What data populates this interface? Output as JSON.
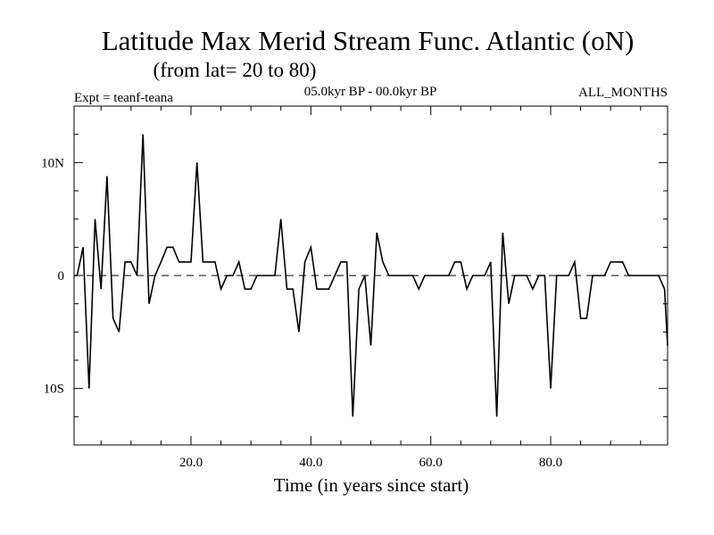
{
  "chart_data": {
    "type": "line",
    "title": "Latitude Max Merid Stream Func. Atlantic (oN)",
    "subtitle": "(from lat= 20 to 80)",
    "expt_label": "Expt = teanf-teana",
    "period_label": "05.0kyr BP - 00.0kyr BP",
    "months_label": "ALL_MONTHS",
    "xlabel": "Time (in years since start)",
    "ylabel": "",
    "xlim": [
      0.5,
      99.5
    ],
    "ylim": [
      -15,
      15
    ],
    "x_ticks": [
      {
        "value": 20,
        "label": "20.0"
      },
      {
        "value": 40,
        "label": "40.0"
      },
      {
        "value": 60,
        "label": "60.0"
      },
      {
        "value": 80,
        "label": "80.0"
      }
    ],
    "y_ticks": [
      {
        "value": 10,
        "label": "10N"
      },
      {
        "value": 0,
        "label": "0"
      },
      {
        "value": -10,
        "label": "10S"
      }
    ],
    "zero_line": "dashed",
    "series": [
      {
        "name": "Latitude Max Merid Stream Func. Atlantic",
        "x": [
          1,
          2,
          3,
          4,
          5,
          6,
          7,
          8,
          9,
          10,
          11,
          12,
          13,
          14,
          15,
          16,
          17,
          18,
          19,
          20,
          21,
          22,
          23,
          24,
          25,
          26,
          27,
          28,
          29,
          30,
          31,
          32,
          33,
          34,
          35,
          36,
          37,
          38,
          39,
          40,
          41,
          42,
          43,
          44,
          45,
          46,
          47,
          48,
          49,
          50,
          51,
          52,
          53,
          54,
          55,
          56,
          57,
          58,
          59,
          60,
          61,
          62,
          63,
          64,
          65,
          66,
          67,
          68,
          69,
          70,
          71,
          72,
          73,
          74,
          75,
          76,
          77,
          78,
          79,
          80,
          81,
          82,
          83,
          84,
          85,
          86,
          87,
          88,
          89,
          90,
          91,
          92,
          93,
          94,
          95,
          96,
          97,
          98,
          99,
          99.5
        ],
        "values": [
          0,
          2.5,
          -10,
          5,
          -1.2,
          8.8,
          -3.8,
          -5,
          1.2,
          1.2,
          0,
          12.5,
          -2.5,
          0,
          1.2,
          2.5,
          2.5,
          1.2,
          1.2,
          1.2,
          10,
          1.2,
          1.2,
          1.2,
          -1.2,
          0,
          0,
          1.2,
          -1.2,
          -1.2,
          0,
          0,
          0,
          0,
          5,
          -1.2,
          -1.2,
          -5,
          1.2,
          2.5,
          -1.2,
          -1.2,
          -1.2,
          0,
          1.2,
          1.2,
          -12.5,
          -1.2,
          0,
          -6.2,
          3.8,
          1.2,
          0,
          0,
          0,
          0,
          0,
          -1.2,
          0,
          0,
          0,
          0,
          0,
          1.2,
          1.2,
          -1.2,
          0,
          0,
          0,
          1.2,
          -12.5,
          3.8,
          -2.5,
          0,
          0,
          0,
          -1.2,
          0,
          0,
          -10,
          0,
          0,
          0,
          1.2,
          -3.8,
          -3.8,
          0,
          0,
          0,
          1.2,
          1.2,
          1.2,
          0,
          0,
          0,
          0,
          0,
          0,
          -1.2,
          -6.2
        ]
      }
    ]
  }
}
